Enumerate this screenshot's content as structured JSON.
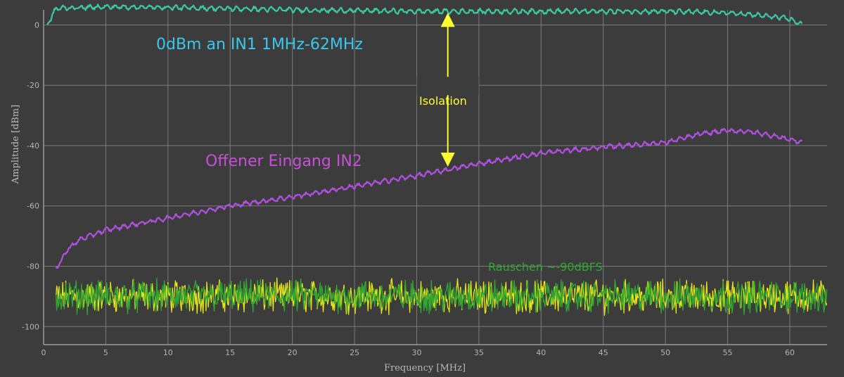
{
  "chart_data": {
    "type": "line",
    "xlabel": "Frequency   [MHz]",
    "ylabel": "Amplitude  [dBm]",
    "xlim": [
      0,
      63
    ],
    "ylim": [
      -106,
      5
    ],
    "xticks": [
      0,
      5,
      10,
      15,
      20,
      25,
      30,
      35,
      40,
      45,
      50,
      55,
      60
    ],
    "yticks": [
      0,
      -20,
      -40,
      -60,
      -80,
      -100
    ],
    "grid": true,
    "series": [
      {
        "name": "",
        "color": "#3cc8a0",
        "x": [
          0.3,
          1,
          5,
          10,
          20,
          30,
          40,
          50,
          55,
          58,
          60,
          61
        ],
        "y": [
          0,
          5.5,
          6,
          5.8,
          5.0,
          4.5,
          4.5,
          4.5,
          4.0,
          3.0,
          2.0,
          0
        ]
      },
      {
        "name": "",
        "color": "#b050e0",
        "x": [
          1,
          2,
          3,
          5,
          10,
          15,
          20,
          25,
          30,
          35,
          40,
          45,
          50,
          53,
          55,
          57,
          59,
          60,
          61
        ],
        "y": [
          -81,
          -74,
          -71,
          -68,
          -64,
          -60,
          -57,
          -53.5,
          -50,
          -46,
          -42.5,
          -40.5,
          -39,
          -36,
          -35,
          -35.5,
          -37,
          -38,
          -39
        ]
      },
      {
        "name": "",
        "color": "#e6e619",
        "noise": {
          "x_start": 1,
          "x_end": 63,
          "mean": -90,
          "spread": 8
        }
      },
      {
        "name": "",
        "color": "#30a830",
        "noise": {
          "x_start": 1,
          "x_end": 63,
          "mean": -90,
          "spread": 8
        }
      }
    ],
    "annotations": {
      "in1": {
        "text": "0dBm an IN1 1MHz-62MHz",
        "color": "#38c8ee"
      },
      "in2": {
        "text": "Offener Eingang IN2",
        "color": "#c850d8"
      },
      "noise": {
        "text": "Rauschen ~-90dBFS",
        "color": "#30a830"
      },
      "isolation": {
        "text": "Isolation",
        "color": "#ffff30",
        "x": 32.5,
        "y_top": 4,
        "y_bottom": -47
      }
    }
  }
}
